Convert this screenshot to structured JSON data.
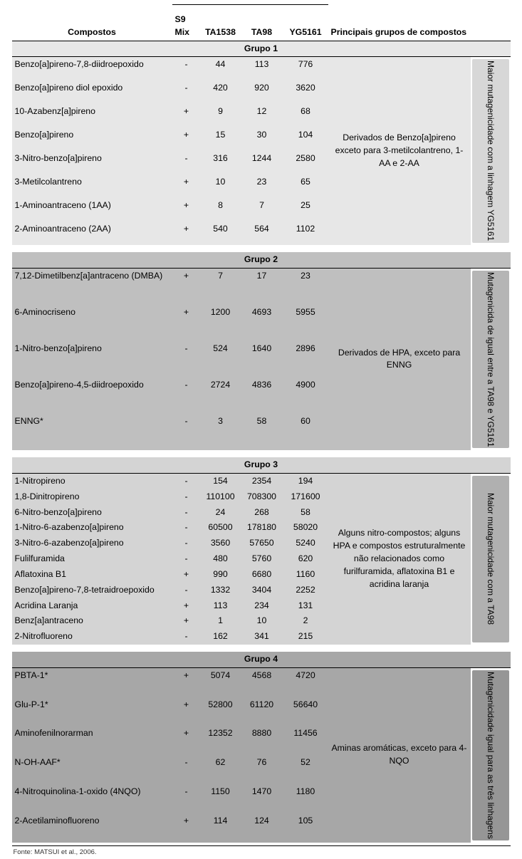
{
  "headers": {
    "compostos": "Compostos",
    "s9": "S9 Mix",
    "ta1538": "TA1538",
    "ta98": "TA98",
    "yg5161": "YG5161",
    "principais": "Principais grupos de compostos"
  },
  "groups": [
    {
      "title": "Grupo 1",
      "bg": "#e7e7e7",
      "desc": "Derivados de Benzo[a]pireno exceto para 3-metilcolantreno, 1-AA e 2-AA",
      "side_label": "Maior mutagenicidade com a linhagem YG5161",
      "side_bg": "#d7d7d7",
      "rows": [
        {
          "name": "Benzo[a]pireno-7,8-diidroepoxido",
          "s9": "-",
          "v": [
            "44",
            "113",
            "776"
          ]
        },
        {
          "name": "Benzo[a]pireno diol epoxido",
          "s9": "-",
          "v": [
            "420",
            "920",
            "3620"
          ]
        },
        {
          "name": "10-Azabenz[a]pireno",
          "s9": "+",
          "v": [
            "9",
            "12",
            "68"
          ]
        },
        {
          "name": "Benzo[a]pireno",
          "s9": "+",
          "v": [
            "15",
            "30",
            "104"
          ]
        },
        {
          "name": "3-Nitro-benzo[a]pireno",
          "s9": "-",
          "v": [
            "316",
            "1244",
            "2580"
          ]
        },
        {
          "name": "3-Metilcolantreno",
          "s9": "+",
          "v": [
            "10",
            "23",
            "65"
          ]
        },
        {
          "name": "1-Aminoantraceno (1AA)",
          "s9": "+",
          "v": [
            "8",
            "7",
            "25"
          ]
        },
        {
          "name": "2-Aminoantraceno (2AA)",
          "s9": "+",
          "v": [
            "540",
            "564",
            "1102"
          ]
        }
      ]
    },
    {
      "title": "Grupo 2",
      "bg": "#bfbfbf",
      "desc": "Derivados de HPA, exceto para ENNG",
      "side_label": "Mutagenicida de igual entre a TA98 e YG5161",
      "side_bg": "#b5b5b5",
      "rows": [
        {
          "name": "7,12-Dimetilbenz[a]antraceno (DMBA)",
          "s9": "+",
          "v": [
            "7",
            "17",
            "23"
          ]
        },
        {
          "name": "6-Aminocriseno",
          "s9": "+",
          "v": [
            "1200",
            "4693",
            "5955"
          ]
        },
        {
          "name": "1-Nitro-benzo[a]pireno",
          "s9": "-",
          "v": [
            "524",
            "1640",
            "2896"
          ]
        },
        {
          "name": "Benzo[a]pireno-4,5-diidroepoxido",
          "s9": "-",
          "v": [
            "2724",
            "4836",
            "4900"
          ]
        },
        {
          "name": "ENNG*",
          "s9": "-",
          "v": [
            "3",
            "58",
            "60"
          ]
        }
      ]
    },
    {
      "title": "Grupo 3",
      "bg": "#d4d4d4",
      "desc": "Alguns nitro-compostos; alguns HPA e compostos estruturalmente não relacionados como furilfuramida, aflatoxina B1 e acridina laranja",
      "side_label": "Maior mutagenicidade com a TA98",
      "side_bg": "#b0b0b0",
      "rows": [
        {
          "name": "1-Nitropireno",
          "s9": "-",
          "v": [
            "154",
            "2354",
            "194"
          ]
        },
        {
          "name": "1,8-Dinitropireno",
          "s9": "-",
          "v": [
            "110100",
            "708300",
            "171600"
          ]
        },
        {
          "name": "6-Nitro-benzo[a]pireno",
          "s9": "-",
          "v": [
            "24",
            "268",
            "58"
          ]
        },
        {
          "name": "1-Nitro-6-azabenzo[a]pireno",
          "s9": "-",
          "v": [
            "60500",
            "178180",
            "58020"
          ]
        },
        {
          "name": "3-Nitro-6-azabenzo[a]pireno",
          "s9": "-",
          "v": [
            "3560",
            "57650",
            "5240"
          ]
        },
        {
          "name": "Fulilfuramida",
          "s9": "-",
          "v": [
            "480",
            "5760",
            "620"
          ]
        },
        {
          "name": "Aflatoxina B1",
          "s9": "+",
          "v": [
            "990",
            "6680",
            "1160"
          ]
        },
        {
          "name": "Benzo[a]pireno-7,8-tetraidroepoxido",
          "s9": "-",
          "v": [
            "1332",
            "3404",
            "2252"
          ]
        },
        {
          "name": "Acridina Laranja",
          "s9": "+",
          "v": [
            "113",
            "234",
            "131"
          ]
        },
        {
          "name": "Benz[a]antraceno",
          "s9": "+",
          "v": [
            "1",
            "10",
            "2"
          ]
        },
        {
          "name": "2-Nitrofluoreno",
          "s9": "-",
          "v": [
            "162",
            "341",
            "215"
          ]
        }
      ]
    },
    {
      "title": "Grupo 4",
      "bg": "#a7a7a7",
      "desc": "Aminas aromáticas, exceto para 4-NQO",
      "side_label": "Mutagenicidade igual para as três linhagens",
      "side_bg": "#969696",
      "rows": [
        {
          "name": "PBTA-1*",
          "s9": "+",
          "v": [
            "5074",
            "4568",
            "4720"
          ]
        },
        {
          "name": "Glu-P-1*",
          "s9": "+",
          "v": [
            "52800",
            "61120",
            "56640"
          ]
        },
        {
          "name": "Aminofenilnorarman",
          "s9": "+",
          "v": [
            "12352",
            "8880",
            "11456"
          ]
        },
        {
          "name": "N-OH-AAF*",
          "s9": "-",
          "v": [
            "62",
            "76",
            "52"
          ]
        },
        {
          "name": "4-Nitroquinolina-1-oxido (4NQO)",
          "s9": "-",
          "v": [
            "1150",
            "1470",
            "1180"
          ]
        },
        {
          "name": "2-Acetilaminofluoreno",
          "s9": "+",
          "v": [
            "114",
            "124",
            "105"
          ]
        }
      ]
    }
  ],
  "source": "Fonte: MATSUI et al., 2006."
}
